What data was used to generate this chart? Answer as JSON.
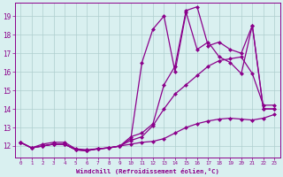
{
  "line1_x": [
    0,
    1,
    2,
    3,
    4,
    5,
    6,
    7,
    8,
    9,
    10,
    11,
    12,
    13,
    14,
    15,
    16,
    17,
    18,
    19,
    20,
    21,
    22,
    23
  ],
  "line1_y": [
    12.2,
    11.9,
    12.1,
    12.2,
    12.2,
    11.85,
    11.8,
    11.85,
    11.9,
    12.0,
    12.1,
    12.2,
    12.25,
    12.4,
    12.7,
    13.0,
    13.2,
    13.35,
    13.45,
    13.5,
    13.45,
    13.4,
    13.5,
    13.7
  ],
  "line2_x": [
    0,
    1,
    2,
    3,
    4,
    5,
    6,
    7,
    8,
    9,
    10,
    11,
    12,
    13,
    14,
    15,
    16,
    17,
    18,
    19,
    20,
    21,
    22,
    23
  ],
  "line2_y": [
    12.2,
    11.9,
    12.0,
    12.1,
    12.1,
    11.8,
    11.75,
    11.85,
    11.9,
    12.0,
    12.3,
    12.5,
    13.1,
    14.0,
    14.8,
    15.3,
    15.8,
    16.3,
    16.6,
    16.7,
    16.8,
    15.9,
    14.2,
    14.2
  ],
  "line3_x": [
    0,
    1,
    2,
    3,
    4,
    5,
    6,
    7,
    8,
    9,
    10,
    11,
    12,
    13,
    14,
    15,
    16,
    17,
    18,
    19,
    20,
    21,
    22,
    23
  ],
  "line3_y": [
    12.2,
    11.9,
    12.0,
    12.1,
    12.1,
    11.8,
    11.75,
    11.85,
    11.9,
    12.0,
    12.5,
    12.7,
    13.2,
    15.3,
    16.3,
    19.3,
    19.5,
    17.4,
    17.6,
    17.2,
    17.0,
    18.5,
    14.0,
    14.0
  ],
  "line4_x": [
    0,
    1,
    2,
    3,
    4,
    5,
    6,
    7,
    8,
    9,
    10,
    11,
    12,
    13,
    14,
    15,
    16,
    17,
    18,
    19,
    20,
    21,
    22,
    23
  ],
  "line4_y": [
    12.2,
    11.9,
    12.0,
    12.1,
    12.1,
    11.8,
    11.75,
    11.85,
    11.9,
    12.0,
    12.4,
    16.5,
    18.3,
    19.0,
    16.0,
    19.2,
    17.2,
    17.6,
    16.8,
    16.5,
    15.9,
    18.5,
    14.0,
    14.0
  ],
  "color": "#8B008B",
  "bg_color": "#d9f0f0",
  "xlabel": "Windchill (Refroidissement éolien,°C)",
  "ylabel_ticks": [
    12,
    13,
    14,
    15,
    16,
    17,
    18,
    19
  ],
  "xlim": [
    -0.5,
    23.5
  ],
  "ylim": [
    11.4,
    19.7
  ],
  "grid_color": "#aecece",
  "line_color": "#8B008B",
  "marker": "D",
  "markersize": 2.5,
  "linewidth": 0.9
}
